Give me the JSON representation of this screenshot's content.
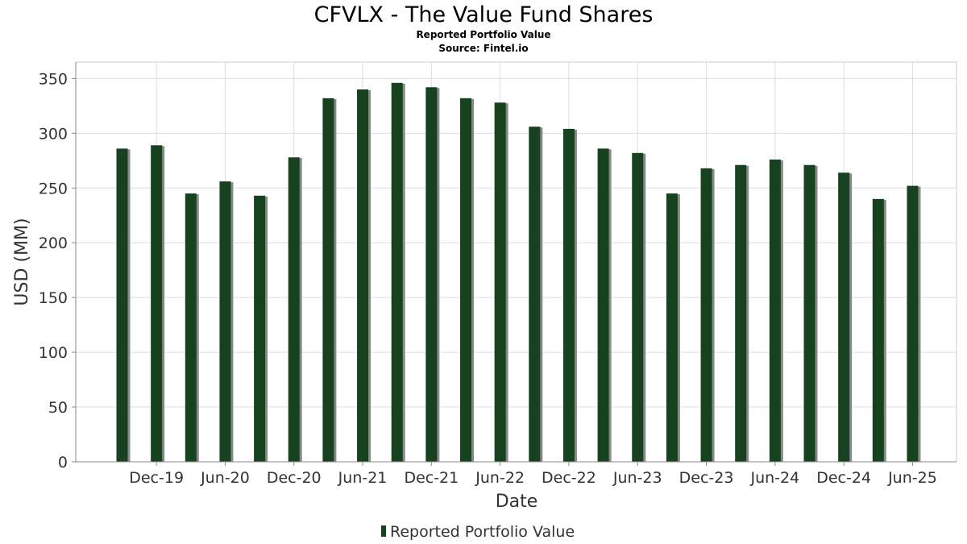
{
  "chart_data": {
    "type": "bar",
    "title": "CFVLX - The Value Fund Shares",
    "subtitle": "Reported Portfolio Value",
    "source": "Source: Fintel.io",
    "xlabel": "Date",
    "ylabel": "USD (MM)",
    "ylim": [
      0,
      365
    ],
    "yticks": [
      0,
      50,
      100,
      150,
      200,
      250,
      300,
      350
    ],
    "grid": true,
    "legend_position": "bottom-center",
    "x_tick_labels": [
      "Dec-19",
      "Jun-20",
      "Dec-20",
      "Jun-21",
      "Dec-21",
      "Jun-22",
      "Dec-22",
      "Jun-23",
      "Dec-23",
      "Jun-24",
      "Dec-24",
      "Jun-25"
    ],
    "series": [
      {
        "name": "Reported Portfolio Value",
        "color": "#17421f",
        "shadow_color": "#888888",
        "values": [
          286,
          289,
          245,
          256,
          243,
          278,
          332,
          340,
          346,
          342,
          332,
          328,
          306,
          304,
          286,
          282,
          245,
          268,
          271,
          276,
          271,
          264,
          240,
          252
        ]
      }
    ]
  }
}
